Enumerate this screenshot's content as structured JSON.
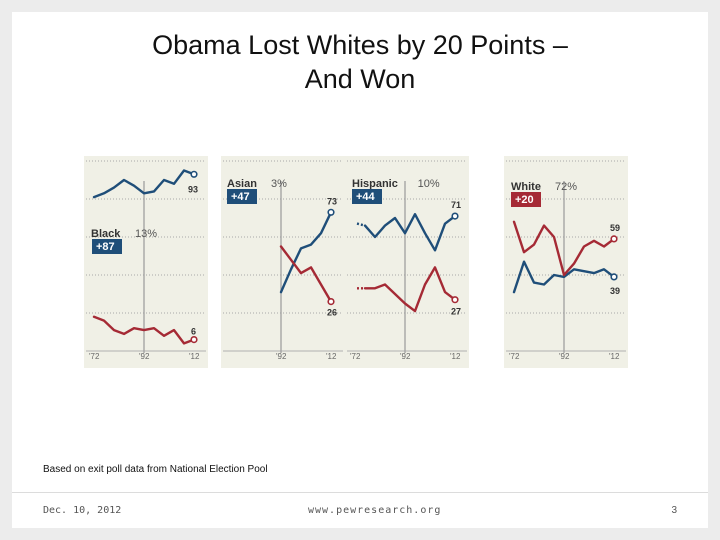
{
  "slide": {
    "title_line1": "Obama Lost Whites by 20 Points –",
    "title_line2": "And Won",
    "source": "Based on exit poll data from National Election Pool",
    "footer_date": "Dec. 10, 2012",
    "footer_url": "www.pewresearch.org",
    "page_number": "3"
  },
  "chart_data": [
    {
      "type": "line",
      "group": "Black",
      "share": "13%",
      "margin": "+87",
      "tick_labels": [
        "'72",
        "'92",
        "'12"
      ],
      "x": [
        1972,
        1976,
        1980,
        1984,
        1988,
        1992,
        1996,
        2000,
        2004,
        2008,
        2012
      ],
      "series": [
        {
          "color": "#1f4e79",
          "values": [
            81,
            83,
            86,
            90,
            87,
            83,
            84,
            90,
            88,
            95,
            93
          ],
          "end_label": "93"
        },
        {
          "color": "#a52a35",
          "values": [
            18,
            16,
            11,
            9,
            12,
            11,
            12,
            8,
            11,
            4,
            6
          ],
          "end_label": "6"
        }
      ],
      "ylim": [
        0,
        100
      ]
    },
    {
      "type": "line",
      "group": "Asian",
      "share": "3%",
      "margin": "+47",
      "tick_labels": [
        "'92",
        "'12"
      ],
      "x": [
        1992,
        1996,
        2000,
        2004,
        2008,
        2012
      ],
      "series": [
        {
          "color": "#1f4e79",
          "values": [
            31,
            43,
            54,
            56,
            62,
            73
          ],
          "end_label": "73"
        },
        {
          "color": "#a52a35",
          "values": [
            55,
            48,
            41,
            44,
            35,
            26
          ],
          "end_label": "26"
        }
      ],
      "ylim": [
        0,
        100
      ]
    },
    {
      "type": "line",
      "group": "Hispanic",
      "share": "10%",
      "margin": "+44",
      "tick_labels": [
        "'72",
        "'92",
        "'12"
      ],
      "x": [
        1976,
        1980,
        1984,
        1988,
        1992,
        1996,
        2000,
        2004,
        2008,
        2012
      ],
      "series": [
        {
          "color": "#1f4e79",
          "values": [
            66,
            60,
            66,
            70,
            62,
            72,
            62,
            53,
            67,
            71
          ],
          "end_label": "71"
        },
        {
          "color": "#a52a35",
          "values": [
            33,
            33,
            35,
            30,
            25,
            21,
            35,
            44,
            31,
            27
          ],
          "end_label": "27"
        }
      ],
      "ylim": [
        0,
        100
      ]
    },
    {
      "type": "line",
      "group": "White",
      "share": "72%",
      "margin": "+20",
      "tick_labels": [
        "'72",
        "'92",
        "'12"
      ],
      "x": [
        1972,
        1976,
        1980,
        1984,
        1988,
        1992,
        1996,
        2000,
        2004,
        2008,
        2012
      ],
      "series": [
        {
          "color": "#1f4e79",
          "values": [
            31,
            47,
            36,
            35,
            40,
            39,
            43,
            42,
            41,
            43,
            39
          ],
          "end_label": "39"
        },
        {
          "color": "#a52a35",
          "values": [
            68,
            52,
            56,
            66,
            60,
            40,
            46,
            55,
            58,
            55,
            59
          ],
          "end_label": "59"
        }
      ],
      "ylim": [
        0,
        100
      ]
    }
  ]
}
